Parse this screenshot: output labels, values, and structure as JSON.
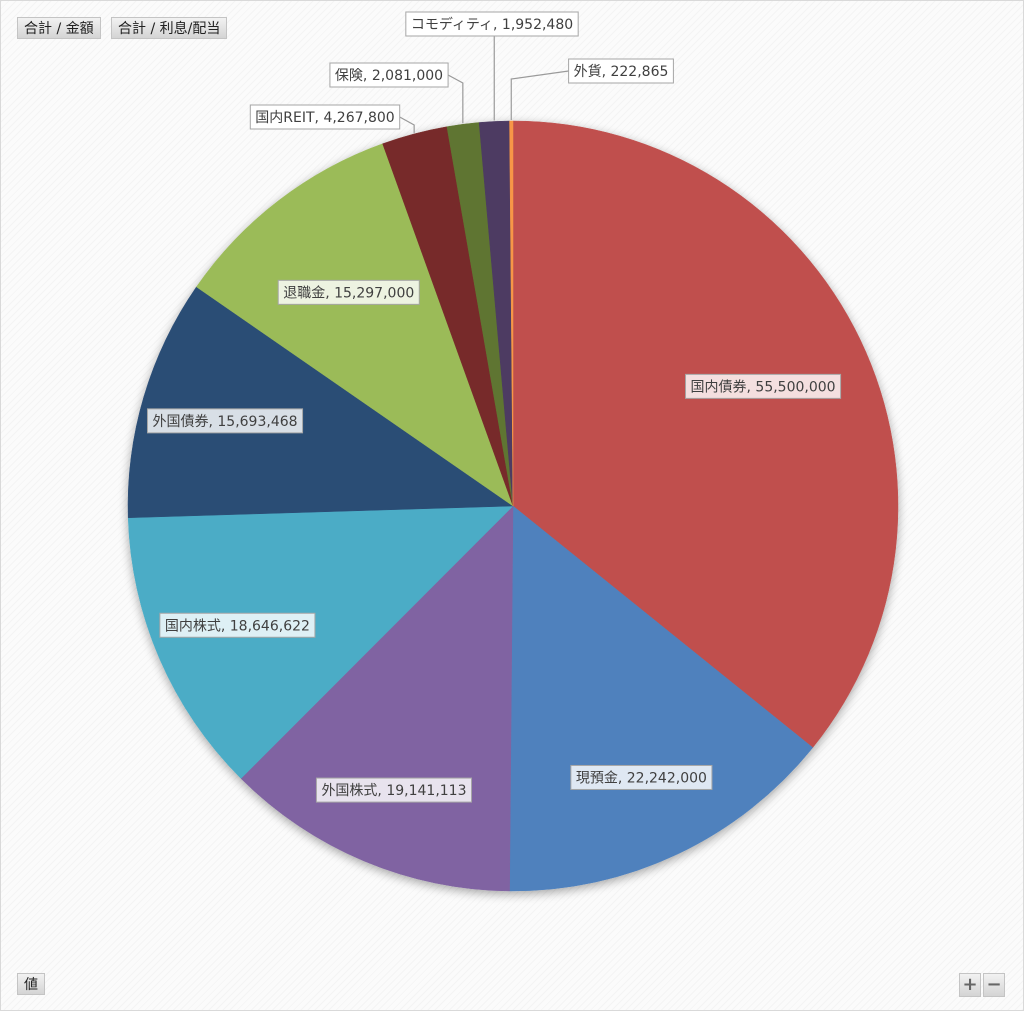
{
  "field_buttons": {
    "total_amount": "合計 / 金額",
    "total_interest": "合計 / 利息/配当",
    "values": "値"
  },
  "zoom": {
    "in": "+",
    "out": "−"
  },
  "chart_data": {
    "type": "pie",
    "title": "",
    "slices": [
      {
        "label": "国内債券",
        "value": 55500000,
        "display": "55,500,000",
        "color": "#C0504D"
      },
      {
        "label": "現預金",
        "value": 22242000,
        "display": "22,242,000",
        "color": "#4F81BD"
      },
      {
        "label": "外国株式",
        "value": 19141113,
        "display": "19,141,113",
        "color": "#8064A2"
      },
      {
        "label": "国内株式",
        "value": 18646622,
        "display": "18,646,622",
        "color": "#4BACC6"
      },
      {
        "label": "外国債券",
        "value": 15693468,
        "display": "15,693,468",
        "color": "#2C4D75"
      },
      {
        "label": "退職金",
        "value": 15297000,
        "display": "15,297,000",
        "color": "#9BBB59"
      },
      {
        "label": "国内REIT",
        "value": 4267800,
        "display": "4,267,800",
        "color": "#772C2A"
      },
      {
        "label": "保険",
        "value": 2081000,
        "display": "2,081,000",
        "color": "#5F7530"
      },
      {
        "label": "コモディティ",
        "value": 1952480,
        "display": "1,952,480",
        "color": "#4D3B62"
      },
      {
        "label": "外貨",
        "value": 222865,
        "display": "222,865",
        "color": "#F79646"
      }
    ],
    "legend": "none"
  }
}
